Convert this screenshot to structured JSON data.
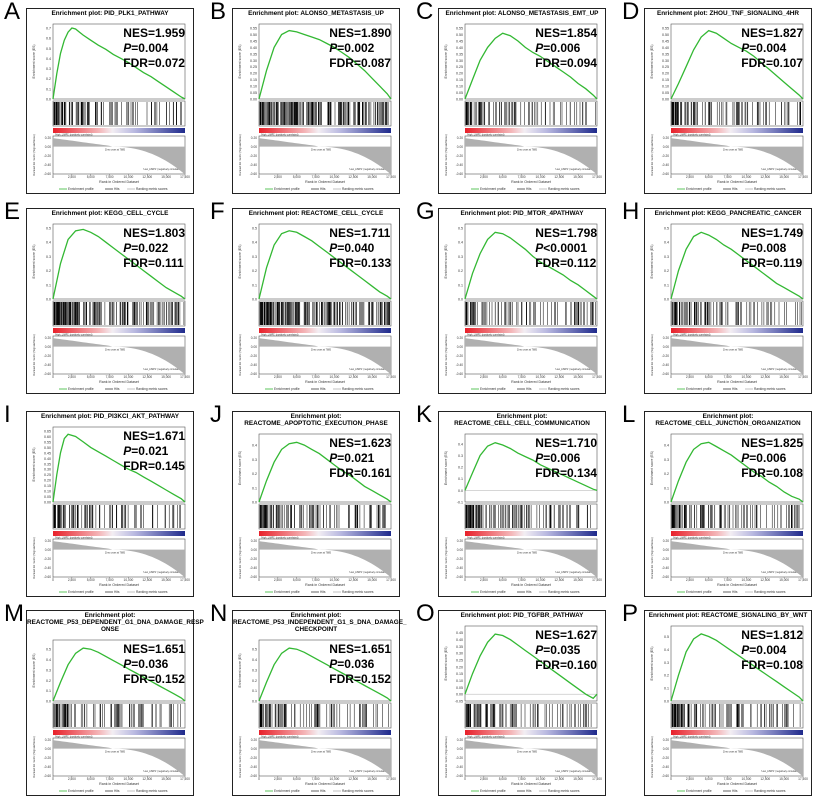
{
  "common": {
    "escore_label": "Enrichment score (ES)",
    "metric_label": "Ranked list metric (Signal2Noise)",
    "xlabel": "Rank in Ordered Dataset",
    "legend": [
      "Enrichment profile",
      "Hits",
      "Ranking metric scores"
    ],
    "high_label": "'High_LIMP1' (positively correlated)",
    "low_label": "'Low_LIMP1' (negatively correlated)",
    "zero_cross": "Zero cross at 7885",
    "x_ticks": [
      "0",
      "2,500",
      "5,000",
      "7,500",
      "10,000",
      "12,500",
      "15,000",
      "17,500"
    ],
    "metric_ticks": [
      "0.20",
      "0.00",
      "-0.20",
      "-0.40",
      "-0.60"
    ],
    "colors": {
      "curve": "#33b833",
      "hit": "#000000",
      "metric": "#b0b0b0",
      "bar_red": "#e8202a",
      "bar_blue": "#1f2a8c"
    }
  },
  "chart_data": [
    {
      "type": "line",
      "letter": "A",
      "title": "Enrichment plot: PID_PLK1_PATHWAY",
      "nes": "1.959",
      "p": "0.004",
      "fdr": "0.072",
      "y_ticks": [
        "0.7",
        "0.6",
        "0.5",
        "0.4",
        "0.3",
        "0.2",
        "0.1",
        "0.0"
      ],
      "ylim": [
        0,
        0.7
      ],
      "x": [
        0,
        500,
        1000,
        1500,
        2000,
        2500,
        3000,
        3500,
        4000,
        5000,
        6000,
        7000,
        8000,
        9000,
        10000,
        11000,
        12000,
        13000,
        14000,
        15000,
        16000,
        17000,
        17500
      ],
      "y": [
        0,
        0.25,
        0.45,
        0.58,
        0.66,
        0.7,
        0.69,
        0.66,
        0.63,
        0.58,
        0.53,
        0.49,
        0.44,
        0.4,
        0.36,
        0.31,
        0.26,
        0.22,
        0.17,
        0.12,
        0.07,
        0.02,
        0
      ],
      "hit_density": 0.45
    },
    {
      "type": "line",
      "letter": "B",
      "title": "Enrichment plot: ALONSO_METASTASIS_UP",
      "nes": "1.890",
      "p": "0.002",
      "fdr": "0.087",
      "y_ticks": [
        "0.55",
        "0.50",
        "0.45",
        "0.40",
        "0.35",
        "0.30",
        "0.25",
        "0.20",
        "0.15",
        "0.10",
        "0.05",
        "0.00"
      ],
      "ylim": [
        0,
        0.55
      ],
      "x": [
        0,
        1000,
        2000,
        3000,
        4000,
        5000,
        6000,
        7000,
        8000,
        9000,
        10000,
        11000,
        12000,
        13000,
        14000,
        15000,
        16000,
        17000,
        17500
      ],
      "y": [
        0,
        0.22,
        0.4,
        0.5,
        0.53,
        0.52,
        0.5,
        0.48,
        0.46,
        0.43,
        0.4,
        0.36,
        0.32,
        0.27,
        0.22,
        0.16,
        0.1,
        0.04,
        0
      ],
      "hit_density": 0.95
    },
    {
      "type": "line",
      "letter": "C",
      "title": "Enrichment plot: ALONSO_METASTASIS_EMT_UP",
      "nes": "1.854",
      "p": "0.006",
      "fdr": "0.094",
      "y_ticks": [
        "0.55",
        "0.50",
        "0.45",
        "0.40",
        "0.35",
        "0.30",
        "0.25",
        "0.20",
        "0.15",
        "0.10",
        "0.05",
        "0.00"
      ],
      "ylim": [
        0,
        0.55
      ],
      "x": [
        0,
        1000,
        2000,
        3000,
        4000,
        5000,
        6000,
        7000,
        8000,
        9000,
        10000,
        11000,
        12000,
        13000,
        14000,
        15000,
        16000,
        17000,
        17500
      ],
      "y": [
        0,
        0.15,
        0.3,
        0.4,
        0.47,
        0.51,
        0.49,
        0.45,
        0.4,
        0.36,
        0.33,
        0.29,
        0.25,
        0.21,
        0.17,
        0.12,
        0.08,
        0.03,
        0
      ],
      "hit_density": 0.35
    },
    {
      "type": "line",
      "letter": "D",
      "title": "Enrichment plot: ZHOU_TNF_SIGNALING_4HR",
      "nes": "1.827",
      "p": "0.004",
      "fdr": "0.107",
      "y_ticks": [
        "0.55",
        "0.50",
        "0.45",
        "0.40",
        "0.35",
        "0.30",
        "0.25",
        "0.20",
        "0.15",
        "0.10",
        "0.05",
        "0.00"
      ],
      "ylim": [
        0,
        0.55
      ],
      "x": [
        0,
        1000,
        2000,
        3000,
        4000,
        5000,
        6000,
        7000,
        8000,
        9000,
        10000,
        11000,
        12000,
        13000,
        14000,
        15000,
        16000,
        17000,
        17500
      ],
      "y": [
        0,
        0.12,
        0.25,
        0.38,
        0.48,
        0.53,
        0.51,
        0.47,
        0.43,
        0.4,
        0.37,
        0.33,
        0.28,
        0.23,
        0.18,
        0.13,
        0.08,
        0.03,
        0
      ],
      "hit_density": 0.4
    },
    {
      "type": "line",
      "letter": "E",
      "title": "Enrichment plot: KEGG_CELL_CYCLE",
      "nes": "1.803",
      "p": "0.022",
      "fdr": "0.111",
      "y_ticks": [
        "0.5",
        "0.4",
        "0.3",
        "0.2",
        "0.1",
        "0.0"
      ],
      "ylim": [
        0,
        0.5
      ],
      "x": [
        0,
        1000,
        2000,
        3000,
        4000,
        5000,
        6000,
        7000,
        8000,
        9000,
        10000,
        11000,
        12000,
        13000,
        14000,
        15000,
        16000,
        17000,
        17500
      ],
      "y": [
        0,
        0.25,
        0.42,
        0.48,
        0.49,
        0.47,
        0.44,
        0.4,
        0.36,
        0.32,
        0.28,
        0.24,
        0.2,
        0.16,
        0.12,
        0.08,
        0.05,
        0.02,
        0
      ],
      "hit_density": 0.85
    },
    {
      "type": "line",
      "letter": "F",
      "title": "Enrichment plot: REACTOME_CELL_CYCLE",
      "nes": "1.711",
      "p": "0.040",
      "fdr": "0.133",
      "y_ticks": [
        "0.5",
        "0.4",
        "0.3",
        "0.2",
        "0.1",
        "0.0"
      ],
      "ylim": [
        0,
        0.5
      ],
      "x": [
        0,
        1000,
        2000,
        3000,
        4000,
        5000,
        6000,
        7000,
        8000,
        9000,
        10000,
        11000,
        12000,
        13000,
        14000,
        15000,
        16000,
        17000,
        17500
      ],
      "y": [
        0,
        0.22,
        0.38,
        0.46,
        0.48,
        0.47,
        0.44,
        0.41,
        0.37,
        0.33,
        0.29,
        0.25,
        0.21,
        0.17,
        0.13,
        0.09,
        0.05,
        0.02,
        0
      ],
      "hit_density": 1.0
    },
    {
      "type": "line",
      "letter": "G",
      "title": "Enrichment plot: PID_MTOR_4PATHWAY",
      "nes": "1.798",
      "p": "<0.0001",
      "fdr": "0.112",
      "y_ticks": [
        "0.5",
        "0.4",
        "0.3",
        "0.2",
        "0.1",
        "0.0"
      ],
      "ylim": [
        0,
        0.5
      ],
      "x": [
        0,
        1000,
        2000,
        3000,
        4000,
        5000,
        6000,
        7000,
        8000,
        9000,
        10000,
        11000,
        12000,
        13000,
        14000,
        15000,
        16000,
        17000,
        17500
      ],
      "y": [
        0,
        0.18,
        0.32,
        0.42,
        0.47,
        0.46,
        0.43,
        0.39,
        0.35,
        0.3,
        0.26,
        0.23,
        0.2,
        0.17,
        0.13,
        0.1,
        0.06,
        0.02,
        0
      ],
      "hit_density": 0.35
    },
    {
      "type": "line",
      "letter": "H",
      "title": "Enrichment plot: KEGG_PANCREATIC_CANCER",
      "nes": "1.749",
      "p": "0.008",
      "fdr": "0.119",
      "y_ticks": [
        "0.5",
        "0.4",
        "0.3",
        "0.2",
        "0.1",
        "0.0"
      ],
      "ylim": [
        0,
        0.5
      ],
      "x": [
        0,
        1000,
        2000,
        3000,
        4000,
        5000,
        6000,
        7000,
        8000,
        9000,
        10000,
        11000,
        12000,
        13000,
        14000,
        15000,
        16000,
        17000,
        17500
      ],
      "y": [
        0,
        0.2,
        0.35,
        0.44,
        0.47,
        0.45,
        0.42,
        0.38,
        0.35,
        0.31,
        0.27,
        0.23,
        0.19,
        0.15,
        0.11,
        0.08,
        0.05,
        0.02,
        0
      ],
      "hit_density": 0.4
    },
    {
      "type": "line",
      "letter": "I",
      "title": "Enrichment plot: PID_PI3KCI_AKT_PATHWAY",
      "nes": "1.671",
      "p": "0.021",
      "fdr": "0.145",
      "y_ticks": [
        "0.65",
        "0.60",
        "0.55",
        "0.50",
        "0.45",
        "0.40",
        "0.35",
        "0.30",
        "0.25",
        "0.20",
        "0.15",
        "0.10",
        "0.05",
        "0.00"
      ],
      "ylim": [
        0,
        0.65
      ],
      "x": [
        0,
        500,
        1000,
        1500,
        2000,
        3000,
        4000,
        5000,
        6000,
        7000,
        8000,
        9000,
        10000,
        11000,
        12000,
        13000,
        14000,
        15000,
        16000,
        17000,
        17500
      ],
      "y": [
        0,
        0.25,
        0.45,
        0.58,
        0.62,
        0.6,
        0.55,
        0.5,
        0.46,
        0.42,
        0.38,
        0.34,
        0.3,
        0.27,
        0.23,
        0.19,
        0.15,
        0.11,
        0.07,
        0.03,
        0
      ],
      "hit_density": 0.35
    },
    {
      "type": "line",
      "letter": "J",
      "title": "Enrichment plot:\nREACTOME_APOPTOTIC_EXECUTION_PHASE",
      "nes": "1.623",
      "p": "0.021",
      "fdr": "0.161",
      "y_ticks": [
        "0.4",
        "0.3",
        "0.2",
        "0.1",
        "0.0"
      ],
      "ylim": [
        0,
        0.45
      ],
      "x": [
        0,
        1000,
        2000,
        3000,
        4000,
        5000,
        6000,
        7000,
        8000,
        9000,
        10000,
        11000,
        12000,
        13000,
        14000,
        15000,
        16000,
        17000,
        17500
      ],
      "y": [
        0,
        0.15,
        0.28,
        0.37,
        0.41,
        0.42,
        0.4,
        0.37,
        0.34,
        0.3,
        0.26,
        0.22,
        0.19,
        0.15,
        0.11,
        0.08,
        0.05,
        0.02,
        0
      ],
      "hit_density": 0.45
    },
    {
      "type": "line",
      "letter": "K",
      "title": "Enrichment plot:\nREACTOME_CELL_CELL_COMMUNICATION",
      "nes": "1.710",
      "p": "0.006",
      "fdr": "0.134",
      "y_ticks": [
        "0.4",
        "0.3",
        "0.2",
        "0.1",
        "0.0",
        "-0.1"
      ],
      "ylim": [
        -0.1,
        0.45
      ],
      "x": [
        0,
        1000,
        2000,
        3000,
        4000,
        5000,
        6000,
        7000,
        8000,
        9000,
        10000,
        11000,
        12000,
        13000,
        14000,
        15000,
        16000,
        17000,
        17500
      ],
      "y": [
        0,
        0.15,
        0.3,
        0.38,
        0.41,
        0.39,
        0.36,
        0.32,
        0.29,
        0.26,
        0.22,
        0.19,
        0.16,
        0.13,
        0.1,
        0.07,
        0.04,
        0.01,
        0
      ],
      "hit_density": 0.5
    },
    {
      "type": "line",
      "letter": "L",
      "title": "Enrichment plot:\nREACTOME_CELL_JUNCTION_ORGANIZATION",
      "nes": "1.825",
      "p": "0.006",
      "fdr": "0.108",
      "y_ticks": [
        "0.4",
        "0.3",
        "0.2",
        "0.1",
        "0.0"
      ],
      "ylim": [
        0,
        0.45
      ],
      "x": [
        0,
        1000,
        2000,
        3000,
        4000,
        5000,
        6000,
        7000,
        8000,
        9000,
        10000,
        11000,
        12000,
        13000,
        14000,
        15000,
        16000,
        17000,
        17500
      ],
      "y": [
        0,
        0.15,
        0.28,
        0.37,
        0.41,
        0.42,
        0.39,
        0.36,
        0.33,
        0.29,
        0.25,
        0.21,
        0.18,
        0.14,
        0.11,
        0.07,
        0.04,
        0.02,
        0
      ],
      "hit_density": 0.45
    },
    {
      "type": "line",
      "letter": "M",
      "title": "Enrichment plot:\nREACTOME_P53_DEPENDENT_G1_DNA_DAMAGE_RESP\nONSE",
      "nes": "1.651",
      "p": "0.036",
      "fdr": "0.152",
      "y_ticks": [
        "0.5",
        "0.4",
        "0.3",
        "0.2",
        "0.1",
        "0.0"
      ],
      "ylim": [
        0,
        0.55
      ],
      "x": [
        0,
        1000,
        2000,
        3000,
        4000,
        5000,
        6000,
        7000,
        8000,
        9000,
        10000,
        11000,
        12000,
        13000,
        14000,
        15000,
        16000,
        17000,
        17500
      ],
      "y": [
        0,
        0.18,
        0.35,
        0.46,
        0.51,
        0.5,
        0.47,
        0.43,
        0.39,
        0.35,
        0.31,
        0.27,
        0.23,
        0.19,
        0.15,
        0.11,
        0.07,
        0.03,
        0
      ],
      "hit_density": 0.35
    },
    {
      "type": "line",
      "letter": "N",
      "title": "Enrichment plot:\nREACTOME_P53_INDEPENDENT_G1_S_DNA_DAMAGE_\nCHECKPOINT",
      "nes": "1.651",
      "p": "0.036",
      "fdr": "0.152",
      "y_ticks": [
        "0.5",
        "0.4",
        "0.3",
        "0.2",
        "0.1",
        "0.0"
      ],
      "ylim": [
        0,
        0.55
      ],
      "x": [
        0,
        1000,
        2000,
        3000,
        4000,
        5000,
        6000,
        7000,
        8000,
        9000,
        10000,
        11000,
        12000,
        13000,
        14000,
        15000,
        16000,
        17000,
        17500
      ],
      "y": [
        0,
        0.18,
        0.35,
        0.46,
        0.51,
        0.5,
        0.47,
        0.43,
        0.39,
        0.35,
        0.31,
        0.27,
        0.23,
        0.19,
        0.15,
        0.11,
        0.07,
        0.03,
        0
      ],
      "hit_density": 0.35
    },
    {
      "type": "line",
      "letter": "O",
      "title": "Enrichment plot: PID_TGFBR_PATHWAY",
      "nes": "1.627",
      "p": "0.035",
      "fdr": "0.160",
      "y_ticks": [
        "0.45",
        "0.40",
        "0.35",
        "0.30",
        "0.25",
        "0.20",
        "0.15",
        "0.10",
        "0.05",
        "0.00",
        "-0.05"
      ],
      "ylim": [
        -0.05,
        0.47
      ],
      "x": [
        0,
        1000,
        2000,
        3000,
        4000,
        5000,
        6000,
        7000,
        8000,
        9000,
        10000,
        11000,
        12000,
        13000,
        14000,
        15000,
        16000,
        17000,
        17500
      ],
      "y": [
        0,
        0.15,
        0.28,
        0.38,
        0.44,
        0.43,
        0.4,
        0.36,
        0.32,
        0.28,
        0.24,
        0.2,
        0.16,
        0.12,
        0.08,
        0.04,
        0.0,
        -0.03,
        0
      ],
      "hit_density": 0.35
    },
    {
      "type": "line",
      "letter": "P",
      "title": "Enrichment plot: REACTOME_SIGNALING_BY_WNT",
      "nes": "1.812",
      "p": "0.004",
      "fdr": "0.108",
      "y_ticks": [
        "0.5",
        "0.4",
        "0.3",
        "0.2",
        "0.1",
        "0.0"
      ],
      "ylim": [
        0,
        0.55
      ],
      "x": [
        0,
        1000,
        2000,
        3000,
        4000,
        5000,
        6000,
        7000,
        8000,
        9000,
        10000,
        11000,
        12000,
        13000,
        14000,
        15000,
        16000,
        17000,
        17500
      ],
      "y": [
        0,
        0.2,
        0.38,
        0.48,
        0.52,
        0.5,
        0.47,
        0.43,
        0.39,
        0.35,
        0.31,
        0.27,
        0.23,
        0.19,
        0.15,
        0.11,
        0.07,
        0.03,
        0
      ],
      "hit_density": 0.45
    }
  ]
}
